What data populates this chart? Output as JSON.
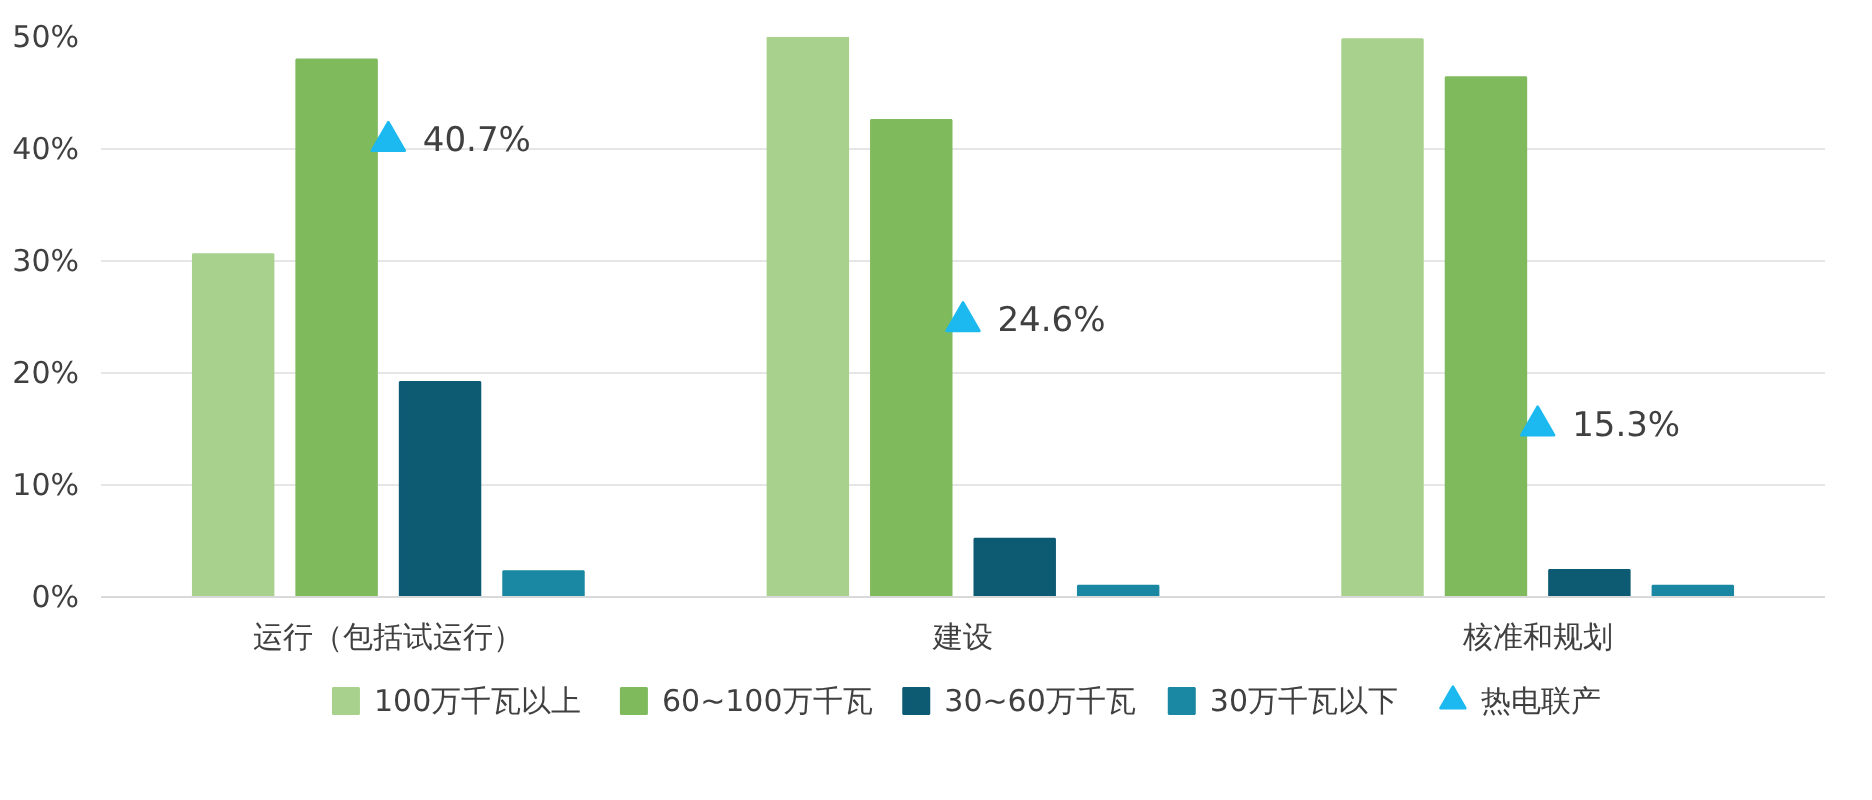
{
  "chart_data": {
    "type": "bar",
    "categories": [
      "运行（包括试运行）",
      "建设",
      "核准和规划"
    ],
    "ylim": [
      0,
      50
    ],
    "yticks": [
      {
        "value": 0,
        "label": "0%"
      },
      {
        "value": 10,
        "label": "10%"
      },
      {
        "value": 20,
        "label": "20%"
      },
      {
        "value": 30,
        "label": "30%"
      },
      {
        "value": 40,
        "label": "40%"
      },
      {
        "value": 50,
        "label": "50%"
      }
    ],
    "grid": "y",
    "legend": "bottom",
    "series": [
      {
        "name": "100万千瓦以上",
        "color": "#a9d18e",
        "values": [
          30.6,
          50.0,
          49.8
        ]
      },
      {
        "name": "60~100万千瓦",
        "color": "#7fba5c",
        "values": [
          48.0,
          42.6,
          46.4
        ]
      },
      {
        "name": "30~60万千瓦",
        "color": "#0d5a73",
        "values": [
          19.2,
          5.2,
          2.4
        ]
      },
      {
        "name": "30万千瓦以下",
        "color": "#1a87a3",
        "values": [
          2.3,
          1.0,
          1.0
        ]
      },
      {
        "name": "热电联产",
        "type": "scatter",
        "marker": "triangle",
        "color": "#1bb9ef",
        "x": [
          "运行（包括试运行）",
          "建设",
          "核准和规划"
        ],
        "values": [
          40.7,
          24.6,
          15.3
        ],
        "value_labels": [
          "40.7%",
          "24.6%",
          "15.3%"
        ]
      }
    ]
  }
}
